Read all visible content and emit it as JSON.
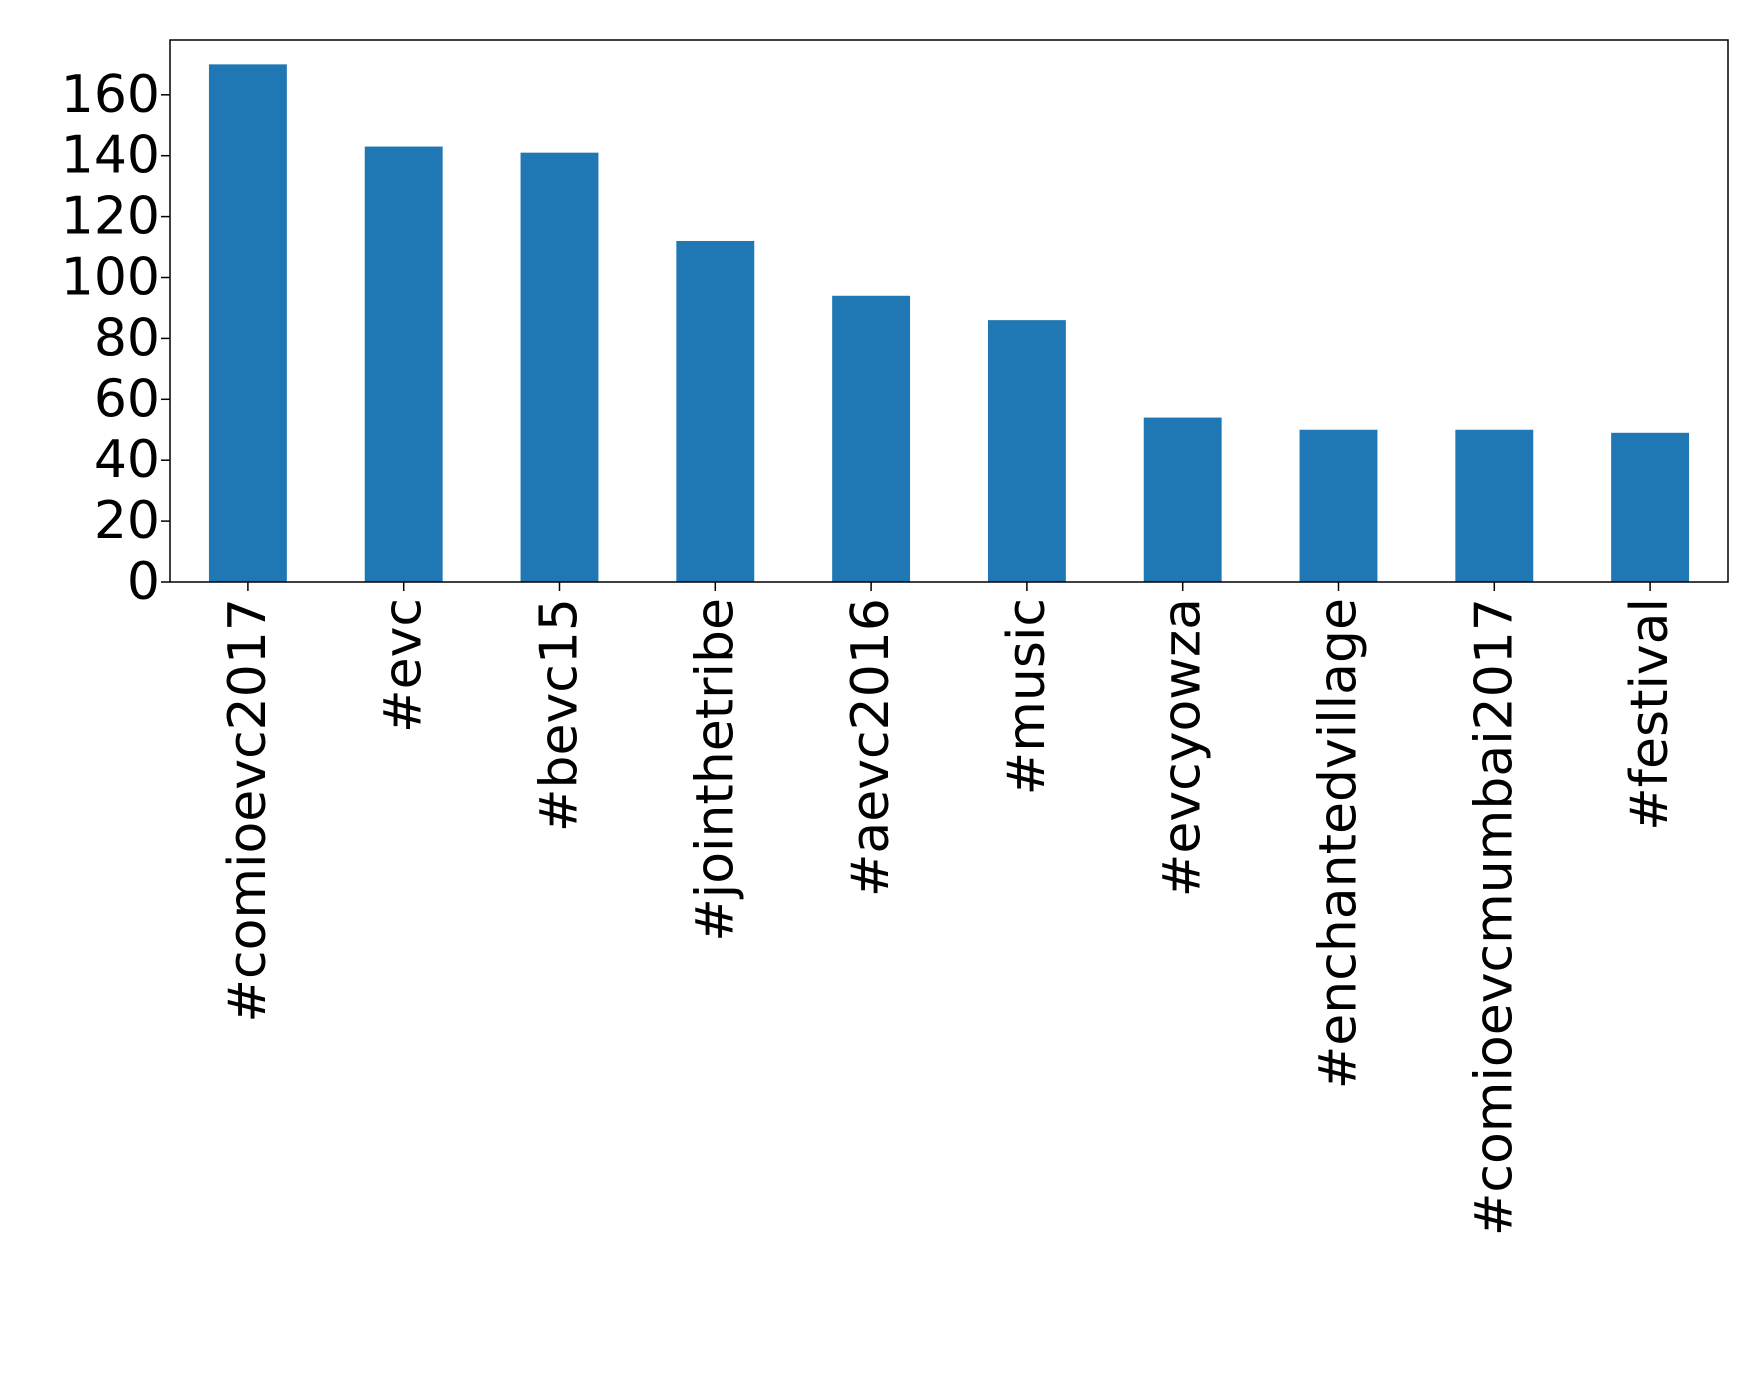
{
  "chart_data": {
    "type": "bar",
    "categories": [
      "#comioevc2017",
      "#evc",
      "#bevc15",
      "#jointhetribe",
      "#aevc2016",
      "#music",
      "#evcyowza",
      "#enchantedvillage",
      "#comioevcmumbai2017",
      "#festival"
    ],
    "values": [
      170,
      143,
      141,
      112,
      94,
      86,
      54,
      50,
      50,
      49
    ],
    "ylim": [
      0,
      178
    ],
    "yticks": [
      0,
      20,
      40,
      60,
      80,
      100,
      120,
      140,
      160
    ],
    "title": "",
    "xlabel": "",
    "ylabel": "",
    "grid": false,
    "bar_color": "#1f77b4"
  }
}
